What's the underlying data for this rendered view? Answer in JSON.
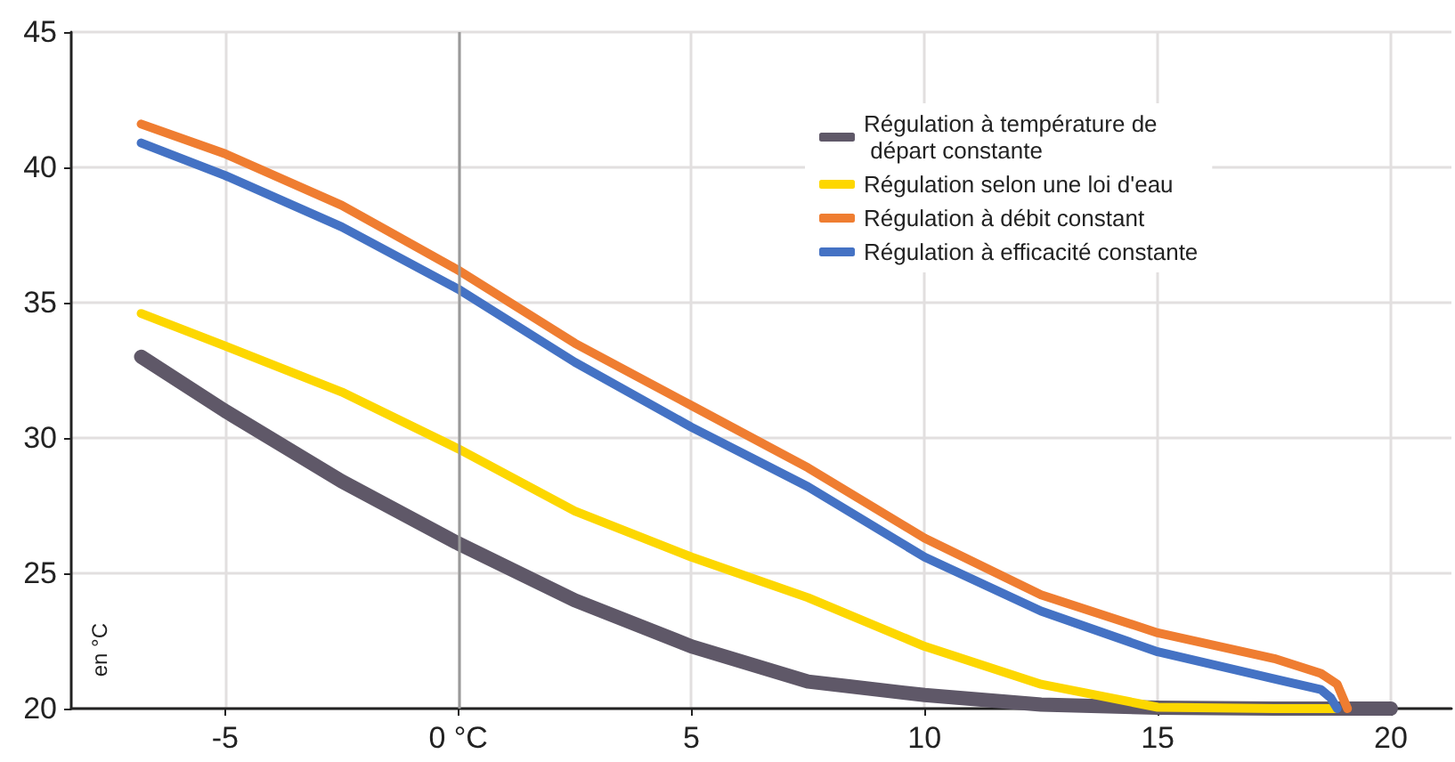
{
  "chart_data": {
    "type": "line",
    "ylabel": "en °C",
    "xlim": [
      -8.3,
      21.3
    ],
    "ylim": [
      20,
      45
    ],
    "xticks": [
      -5,
      {
        "value": 0,
        "label": "0 °C"
      },
      5,
      10,
      15,
      20
    ],
    "yticks": [
      20,
      25,
      30,
      35,
      40,
      45
    ],
    "grid": true,
    "legend": "top right",
    "marker": "none",
    "line_style": "solid",
    "ref_lines": [
      {
        "axis": "x",
        "value": 0,
        "label": null,
        "color": "#9a9a9a"
      }
    ],
    "series": [
      {
        "name": "Régulation à température de départ constante",
        "color": "#5f5868",
        "x": [
          -6.8,
          -5,
          -2.5,
          0,
          2.5,
          5,
          7.5,
          10,
          12.5,
          15,
          17.5,
          20
        ],
        "values": [
          33.0,
          31.0,
          28.4,
          26.1,
          24.0,
          22.3,
          21.0,
          20.5,
          20.15,
          20.03,
          20,
          20
        ]
      },
      {
        "name": "Régulation selon une loi d'eau",
        "color": "#fdd700",
        "x": [
          -6.8,
          -5,
          -2.5,
          0,
          2.5,
          5,
          7.5,
          10,
          12.5,
          15,
          17.5,
          18.8
        ],
        "values": [
          34.6,
          33.4,
          31.7,
          29.6,
          27.3,
          25.6,
          24.1,
          22.3,
          20.9,
          20.05,
          20,
          20
        ]
      },
      {
        "name": "Régulation à débit constant",
        "color": "#ef7d31",
        "x": [
          -6.8,
          -5,
          -2.5,
          0,
          2.5,
          5,
          7.5,
          10,
          12.5,
          15,
          17.5,
          18.5,
          18.85,
          19.07
        ],
        "values": [
          41.6,
          40.5,
          38.6,
          36.2,
          33.5,
          31.2,
          28.9,
          26.3,
          24.2,
          22.8,
          21.85,
          21.3,
          20.9,
          20
        ]
      },
      {
        "name": "Régulation à efficacité constante",
        "color": "#4472c4",
        "x": [
          -6.8,
          -5,
          -2.5,
          0,
          2.5,
          5,
          7.5,
          10,
          12.5,
          15,
          17.5,
          18.5,
          18.71,
          18.85
        ],
        "values": [
          40.9,
          39.7,
          37.8,
          35.5,
          32.8,
          30.4,
          28.2,
          25.6,
          23.6,
          22.1,
          21.1,
          20.7,
          20.4,
          20
        ]
      }
    ]
  }
}
